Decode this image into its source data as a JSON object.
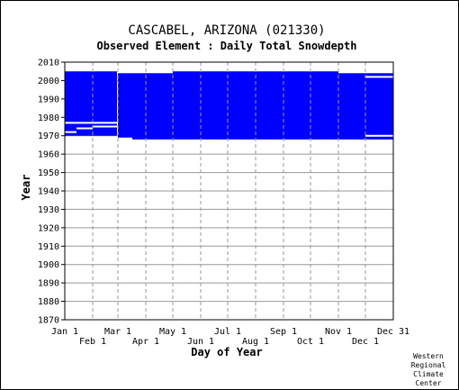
{
  "chart_data": {
    "type": "bar",
    "title": "CASCABEL, ARIZONA   (021330)",
    "subtitle": "Observed Element : Daily Total Snowdepth",
    "xlabel": "Day of Year",
    "ylabel": "Year",
    "xlim": [
      1,
      366
    ],
    "ylim": [
      1870,
      2010
    ],
    "y_ticks": [
      1870,
      1880,
      1890,
      1900,
      1910,
      1920,
      1930,
      1940,
      1950,
      1960,
      1970,
      1980,
      1990,
      2000,
      2010
    ],
    "x_ticks_top": [
      {
        "label": "Jan 1",
        "day": 1
      },
      {
        "label": "Mar 1",
        "day": 60
      },
      {
        "label": "May 1",
        "day": 121
      },
      {
        "label": "Jul 1",
        "day": 182
      },
      {
        "label": "Sep 1",
        "day": 244
      },
      {
        "label": "Nov 1",
        "day": 305
      },
      {
        "label": "Dec 31",
        "day": 366
      }
    ],
    "x_ticks_bottom": [
      {
        "label": "Feb 1",
        "day": 32
      },
      {
        "label": "Apr 1",
        "day": 91
      },
      {
        "label": "Jun 1",
        "day": 152
      },
      {
        "label": "Aug 1",
        "day": 213
      },
      {
        "label": "Oct 1",
        "day": 274
      },
      {
        "label": "Dec 1",
        "day": 335
      }
    ],
    "grid": true,
    "color_fill": "#0000ff",
    "bars": [
      {
        "day_start": 1,
        "day_end": 59,
        "year_start": 1970,
        "year_end": 2005
      },
      {
        "day_start": 60,
        "day_end": 76,
        "year_start": 1969,
        "year_end": 2004
      },
      {
        "day_start": 76,
        "day_end": 121,
        "year_start": 1968,
        "year_end": 2004
      },
      {
        "day_start": 121,
        "day_end": 182,
        "year_start": 1968,
        "year_end": 2005
      },
      {
        "day_start": 182,
        "day_end": 244,
        "year_start": 1968,
        "year_end": 2005
      },
      {
        "day_start": 244,
        "day_end": 305,
        "year_start": 1968,
        "year_end": 2005
      },
      {
        "day_start": 305,
        "day_end": 335,
        "year_start": 1968,
        "year_end": 2004
      },
      {
        "day_start": 335,
        "day_end": 366,
        "year_start": 1968,
        "year_end": 2004
      }
    ],
    "gaps": [
      {
        "day_start": 1,
        "day_end": 60,
        "year": 1977
      },
      {
        "day_start": 1,
        "day_end": 14,
        "year": 1972
      },
      {
        "day_start": 14,
        "day_end": 32,
        "year": 1974
      },
      {
        "day_start": 32,
        "day_end": 60,
        "year": 1975
      },
      {
        "day_start": 335,
        "day_end": 366,
        "year": 2002
      },
      {
        "day_start": 335,
        "day_end": 366,
        "year": 1970
      }
    ]
  },
  "credit": [
    "Western",
    "Regional",
    "Climate",
    "Center"
  ]
}
